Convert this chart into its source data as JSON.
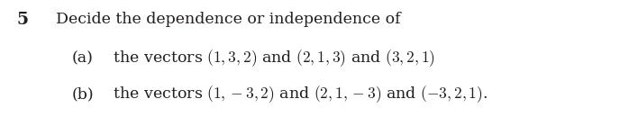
{
  "background_color": "#ffffff",
  "text_color": "#231f20",
  "number": "5",
  "number_fontsize": 13.5,
  "number_fontweight": "bold",
  "line1_text": "Decide the dependence or independence of",
  "line1_fontsize": 12.5,
  "line_a_label": "(a)",
  "line_a_text": " the vectors $(1,3,2)$ and $(2,1,3)$ and $(3,2,1)$",
  "line_b_label": "(b)",
  "line_b_text": " the vectors $(1,-3,2)$ and $(2,1,-3)$ and $(-3,2,1)$.",
  "lines_fontsize": 12.5,
  "fig_width": 6.88,
  "fig_height": 1.4,
  "dpi": 100
}
